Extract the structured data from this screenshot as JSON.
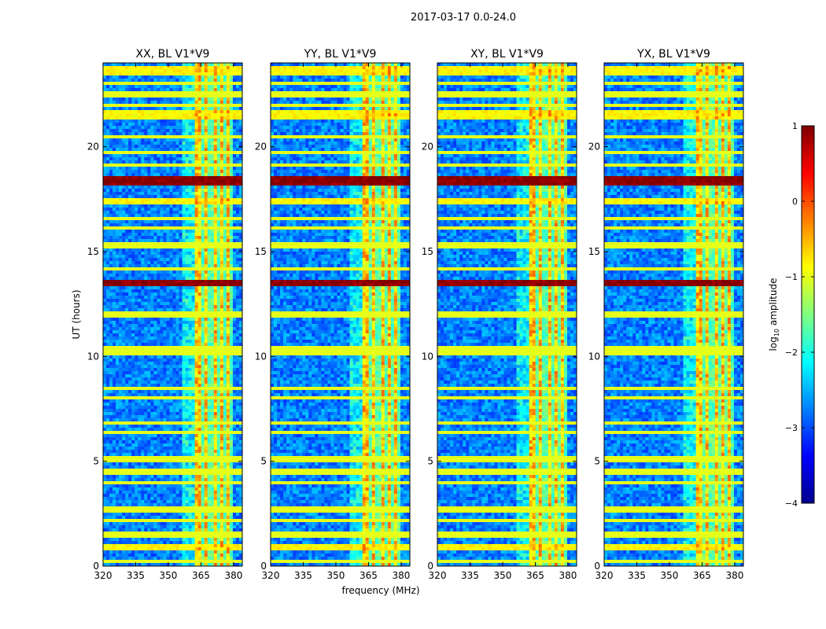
{
  "chart_data": {
    "type": "heatmap",
    "title": "2017-03-17 0.0-24.0",
    "xlabel": "frequency (MHz)",
    "ylabel": "UT (hours)",
    "xlim": [
      320,
      384
    ],
    "ylim": [
      0,
      24
    ],
    "xticks": [
      "320",
      "335",
      "350",
      "365",
      "380"
    ],
    "xtick_values": [
      320,
      335,
      350,
      365,
      380
    ],
    "yticks": [
      "0",
      "5",
      "10",
      "15",
      "20"
    ],
    "ytick_values": [
      0,
      5,
      10,
      15,
      20
    ],
    "colormap": "jet",
    "colorbar": {
      "label": "log10 amplitude",
      "label_text": "log",
      "label_sub": "10",
      "label_rest": " amplitude",
      "range": [
        -4,
        1
      ],
      "ticks": [
        "1",
        "0",
        "−1",
        "−2",
        "−3",
        "−4"
      ],
      "tick_values": [
        1,
        0,
        -1,
        -2,
        -3,
        -4
      ]
    },
    "panels": [
      {
        "title": "XX, BL V1*V9",
        "pol": "XX",
        "baseline": "V1*V9"
      },
      {
        "title": "YY, BL V1*V9",
        "pol": "YY",
        "baseline": "V1*V9"
      },
      {
        "title": "XY, BL V1*V9",
        "pol": "XY",
        "baseline": "V1*V9"
      },
      {
        "title": "YX, BL V1*V9",
        "pol": "YX",
        "baseline": "V1*V9"
      }
    ],
    "features": {
      "strong_band_mhz": [
        362,
        380
      ],
      "band_gap_lines_mhz": [
        366,
        369.5,
        373.5,
        376.5,
        379.5
      ],
      "bright_rows_hours": [
        {
          "ut": 18.4,
          "level": 0.8
        },
        {
          "ut": 13.5,
          "level": 0.8
        },
        {
          "ut": 17.4,
          "level": -1.0
        },
        {
          "ut": 23.6,
          "level": -1.0
        },
        {
          "ut": 21.5,
          "level": -1.0
        },
        {
          "ut": 0.9,
          "level": -1.0
        }
      ],
      "flagged_rows_hours": [
        0.2,
        1.5,
        2.2,
        2.7,
        4.0,
        4.5,
        5.1,
        6.4,
        6.8,
        8.0,
        8.5,
        10.2,
        10.4,
        12.0,
        14.2,
        15.3,
        16.1,
        16.6,
        19.1,
        19.7,
        20.5,
        22.0,
        22.5,
        23.0
      ]
    }
  }
}
